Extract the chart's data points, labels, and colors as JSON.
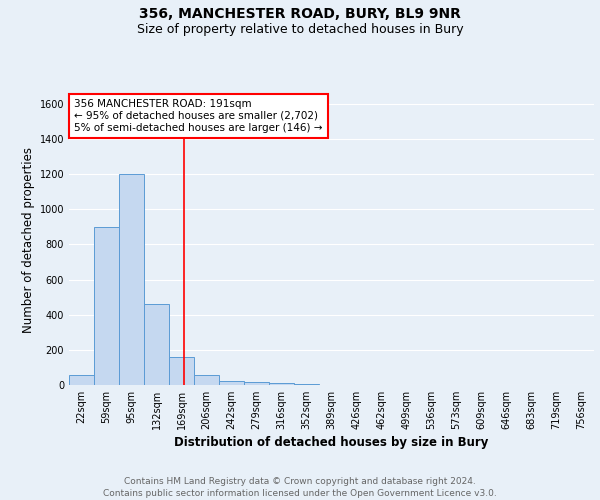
{
  "title_line1": "356, MANCHESTER ROAD, BURY, BL9 9NR",
  "title_line2": "Size of property relative to detached houses in Bury",
  "xlabel": "Distribution of detached houses by size in Bury",
  "ylabel": "Number of detached properties",
  "bin_labels": [
    "22sqm",
    "59sqm",
    "95sqm",
    "132sqm",
    "169sqm",
    "206sqm",
    "242sqm",
    "279sqm",
    "316sqm",
    "352sqm",
    "389sqm",
    "426sqm",
    "462sqm",
    "499sqm",
    "536sqm",
    "573sqm",
    "609sqm",
    "646sqm",
    "683sqm",
    "719sqm",
    "756sqm"
  ],
  "bar_heights": [
    55,
    900,
    1200,
    460,
    160,
    55,
    25,
    15,
    10,
    8,
    0,
    0,
    0,
    0,
    0,
    0,
    0,
    0,
    0,
    0,
    0
  ],
  "bar_color": "#c5d8f0",
  "bar_edge_color": "#5b9bd5",
  "vline_color": "red",
  "annotation_text": "356 MANCHESTER ROAD: 191sqm\n← 95% of detached houses are smaller (2,702)\n5% of semi-detached houses are larger (146) →",
  "annotation_box_color": "white",
  "annotation_box_edge_color": "red",
  "ylim": [
    0,
    1650
  ],
  "yticks": [
    0,
    200,
    400,
    600,
    800,
    1000,
    1200,
    1400,
    1600
  ],
  "footer_line1": "Contains HM Land Registry data © Crown copyright and database right 2024.",
  "footer_line2": "Contains public sector information licensed under the Open Government Licence v3.0.",
  "background_color": "#e8f0f8",
  "plot_bg_color": "#e8f0f8",
  "grid_color": "white",
  "title_fontsize": 10,
  "subtitle_fontsize": 9,
  "axis_label_fontsize": 8.5,
  "tick_fontsize": 7,
  "footer_fontsize": 6.5,
  "annotation_fontsize": 7.5
}
